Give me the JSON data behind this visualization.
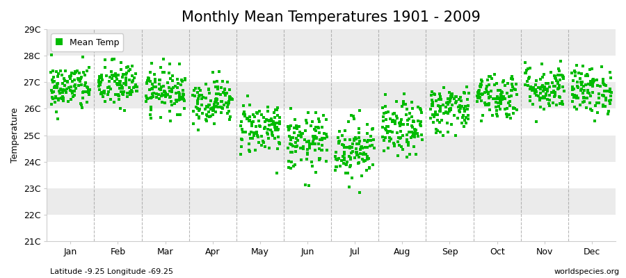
{
  "title": "Monthly Mean Temperatures 1901 - 2009",
  "ylabel": "Temperature",
  "ylim": [
    21,
    29
  ],
  "yticks": [
    21,
    22,
    23,
    24,
    25,
    26,
    27,
    28,
    29
  ],
  "ytick_labels": [
    "21C",
    "22C",
    "23C",
    "24C",
    "25C",
    "26C",
    "27C",
    "28C",
    "29C"
  ],
  "months": [
    "Jan",
    "Feb",
    "Mar",
    "Apr",
    "May",
    "Jun",
    "Jul",
    "Aug",
    "Sep",
    "Oct",
    "Nov",
    "Dec"
  ],
  "month_means": [
    26.8,
    26.9,
    26.7,
    26.3,
    25.3,
    24.7,
    24.5,
    25.2,
    26.0,
    26.5,
    26.8,
    26.7
  ],
  "month_stds": [
    0.45,
    0.45,
    0.42,
    0.42,
    0.5,
    0.55,
    0.58,
    0.52,
    0.45,
    0.45,
    0.45,
    0.45
  ],
  "n_years": 109,
  "marker_color": "#00BB00",
  "marker": "s",
  "marker_size": 2.5,
  "background_color": "#FFFFFF",
  "band_color_light": "#FFFFFF",
  "band_color_dark": "#EBEBEB",
  "grid_color": "#999999",
  "title_fontsize": 15,
  "axis_fontsize": 9,
  "tick_fontsize": 9,
  "footnote_left": "Latitude -9.25 Longitude -69.25",
  "footnote_right": "worldspecies.org",
  "seed": 42
}
